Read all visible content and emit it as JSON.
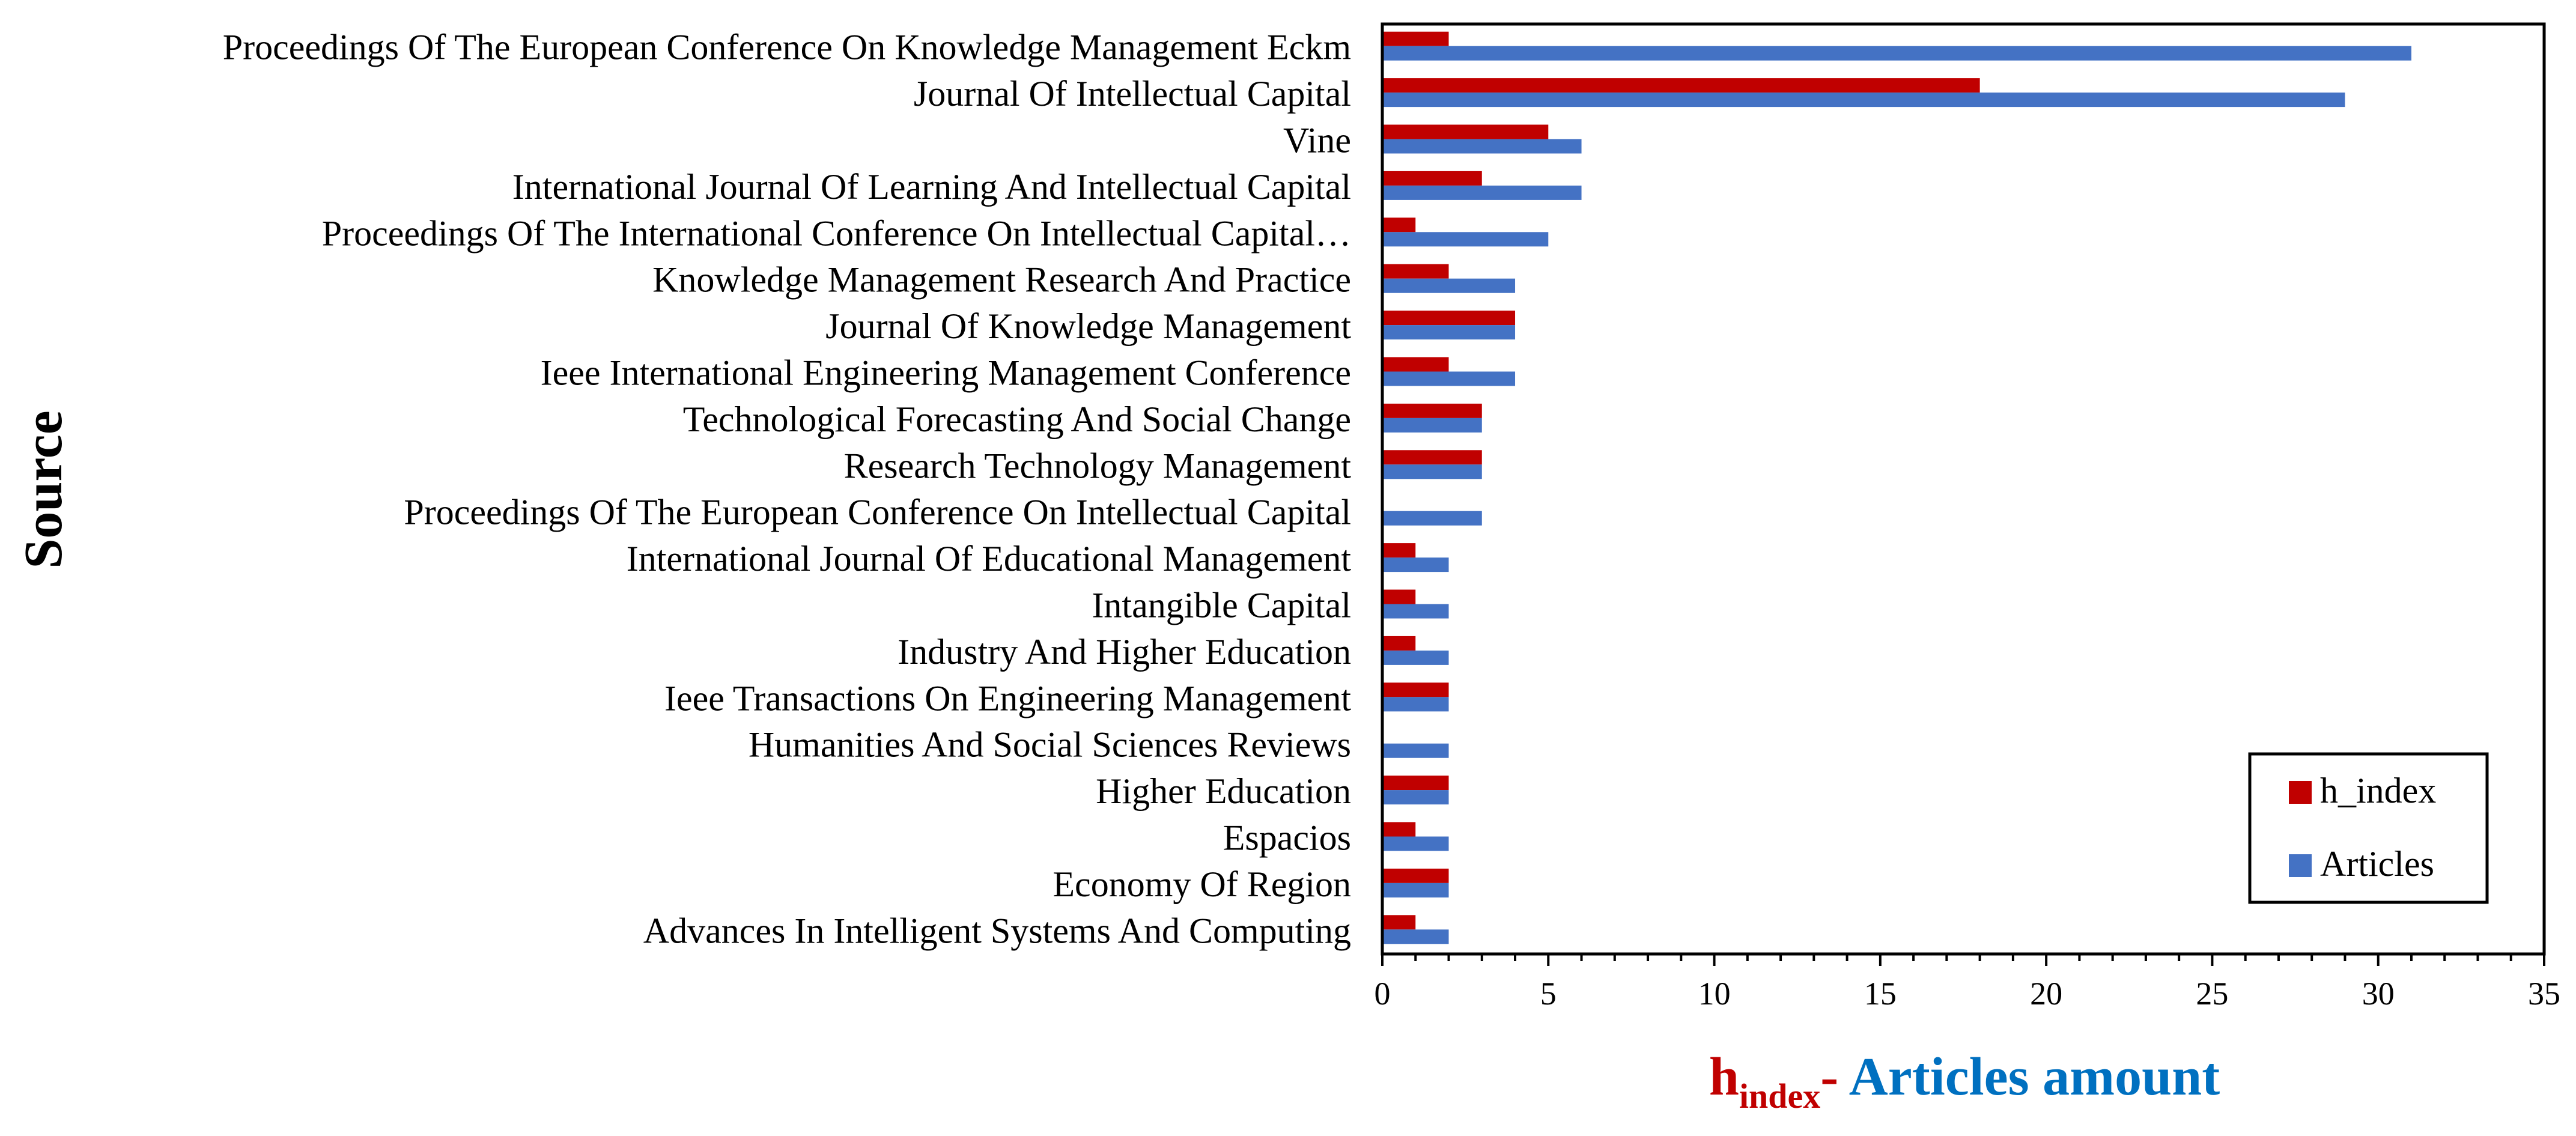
{
  "chart_data": {
    "type": "bar",
    "orientation": "horizontal",
    "categories": [
      "Proceedings Of The European Conference On Knowledge Management Eckm",
      "Journal Of Intellectual Capital",
      "Vine",
      "International Journal Of Learning And Intellectual Capital",
      "Proceedings Of The International Conference On Intellectual Capital…",
      "Knowledge Management Research And Practice",
      "Journal Of Knowledge Management",
      "Ieee International Engineering Management Conference",
      "Technological Forecasting And Social Change",
      "Research Technology Management",
      "Proceedings Of The European Conference On Intellectual Capital",
      "International Journal Of Educational Management",
      "Intangible Capital",
      "Industry And Higher Education",
      "Ieee Transactions On Engineering Management",
      "Humanities And Social Sciences Reviews",
      "Higher Education",
      "Espacios",
      "Economy Of Region",
      "Advances In Intelligent Systems And Computing"
    ],
    "series": [
      {
        "name": "h_index",
        "color": "#c00000",
        "values": [
          2,
          18,
          5,
          3,
          1,
          2,
          4,
          2,
          3,
          3,
          0,
          1,
          1,
          1,
          2,
          0,
          2,
          1,
          2,
          1
        ]
      },
      {
        "name": "Articles",
        "color": "#4472c4",
        "values": [
          31,
          29,
          6,
          6,
          5,
          4,
          4,
          4,
          3,
          3,
          3,
          2,
          2,
          2,
          2,
          2,
          2,
          2,
          2,
          2
        ]
      }
    ],
    "xlim": [
      0,
      35
    ],
    "xticks": [
      0,
      5,
      10,
      15,
      20,
      25,
      30,
      35
    ],
    "ylabel": "Source",
    "xlabel": {
      "part1_main": "h",
      "part1_sub": "index",
      "separator": "-",
      "part2": " Articles amount",
      "part1_color": "#c00000",
      "part2_color": "#0070c0"
    },
    "legend_position": "bottom-right",
    "grid": false
  }
}
